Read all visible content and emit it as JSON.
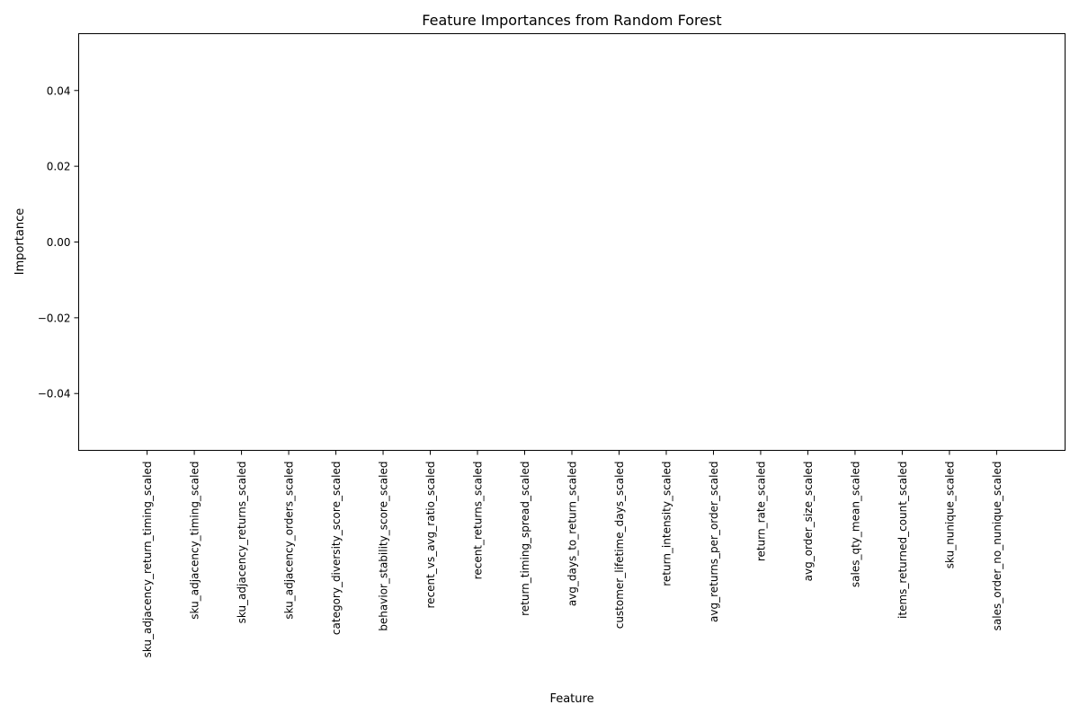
{
  "chart_data": {
    "type": "bar",
    "title": "Feature Importances from Random Forest",
    "xlabel": "Feature",
    "ylabel": "Importance",
    "categories": [
      "sku_adjacency_return_timing_scaled",
      "sku_adjacency_timing_scaled",
      "sku_adjacency_returns_scaled",
      "sku_adjacency_orders_scaled",
      "category_diversity_score_scaled",
      "behavior_stability_score_scaled",
      "recent_vs_avg_ratio_scaled",
      "recent_returns_scaled",
      "return_timing_spread_scaled",
      "avg_days_to_return_scaled",
      "customer_lifetime_days_scaled",
      "return_intensity_scaled",
      "avg_returns_per_order_scaled",
      "return_rate_scaled",
      "avg_order_size_scaled",
      "sales_qty_mean_scaled",
      "items_returned_count_scaled",
      "sku_nunique_scaled",
      "sales_order_no_nunique_scaled"
    ],
    "values": [
      0,
      0,
      0,
      0,
      0,
      0,
      0,
      0,
      0,
      0,
      0,
      0,
      0,
      0,
      0,
      0,
      0,
      0,
      0
    ],
    "ylim": [
      -0.055,
      0.055
    ],
    "yticks": [
      -0.04,
      -0.02,
      0.0,
      0.02,
      0.04
    ],
    "ytick_labels": [
      "−0.04",
      "−0.02",
      "0.00",
      "0.02",
      "0.04"
    ],
    "grid": false,
    "legend": "none",
    "bar_color": "#1f77b4"
  }
}
